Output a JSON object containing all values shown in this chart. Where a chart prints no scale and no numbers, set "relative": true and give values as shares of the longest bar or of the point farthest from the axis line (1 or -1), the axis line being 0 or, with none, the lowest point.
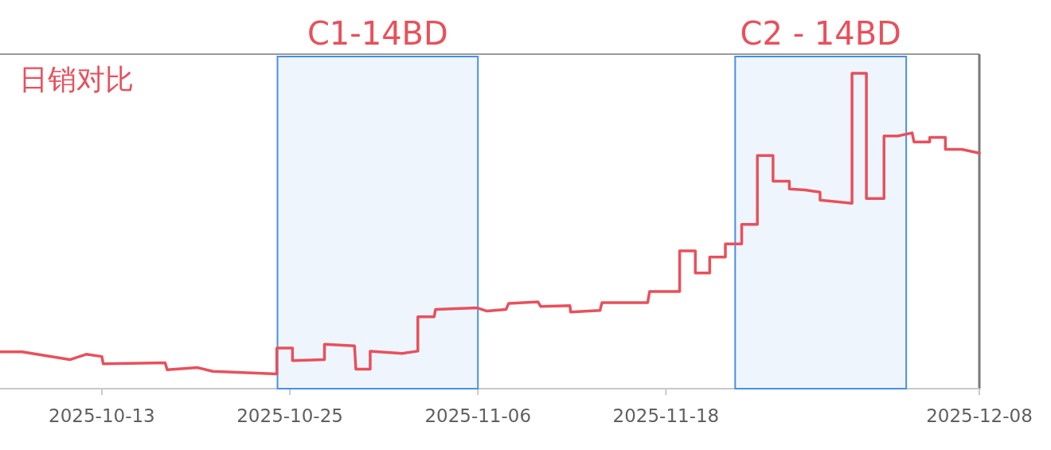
{
  "chart_data": {
    "type": "line",
    "title": "日销对比",
    "relative": true,
    "color": "#e8505b",
    "x": [
      "2025-10-06T12:00",
      "2025-10-07T22:00",
      "2025-10-10T23:00",
      "2025-10-12T00:00",
      "2025-10-13T00:00",
      "2025-10-13T02:00",
      "2025-10-17T01:00",
      "2025-10-17T04:00",
      "2025-10-19T02:00",
      "2025-10-20T02:00",
      "2025-10-24T04:00",
      "2025-10-24T04:00",
      "2025-10-25T04:00",
      "2025-10-25T04:00",
      "2025-10-27T05:00",
      "2025-10-27T05:00",
      "2025-10-29T03:00",
      "2025-10-29T05:00",
      "2025-10-30T03:00",
      "2025-10-30T03:00",
      "2025-11-01T04:00",
      "2025-11-02T04:00",
      "2025-11-02T04:00",
      "2025-11-03T05:00",
      "2025-11-03T07:00",
      "2025-11-05T23:00",
      "2025-11-06T14:00",
      "2025-11-07T19:00",
      "2025-11-07T23:00",
      "2025-11-09T20:00",
      "2025-11-10T00:00",
      "2025-11-11T21:00",
      "2025-11-11T22:00",
      "2025-11-13T19:00",
      "2025-11-13T22:00",
      "2025-11-16T20:00",
      "2025-11-16T23:00",
      "2025-11-18T21:00",
      "2025-11-18T21:00",
      "2025-11-19T21:00",
      "2025-11-19T21:00",
      "2025-11-20T19:00",
      "2025-11-20T19:00",
      "2025-11-21T19:00",
      "2025-11-21T19:00",
      "2025-11-22T20:00",
      "2025-11-22T20:00",
      "2025-11-23T20:00",
      "2025-11-23T20:00",
      "2025-11-24T20:00",
      "2025-11-24T20:00",
      "2025-11-25T21:00",
      "2025-11-25T21:00",
      "2025-11-26T21:00",
      "2025-11-27T20:00",
      "2025-11-27T20:00",
      "2025-11-29T21:00",
      "2025-11-29T21:00",
      "2025-11-30T19:00",
      "2025-11-30T19:00",
      "2025-12-01T22:00",
      "2025-12-01T22:00",
      "2025-12-02T19:00",
      "2025-12-03T17:00",
      "2025-12-03T20:00",
      "2025-12-04T20:00",
      "2025-12-04T20:00",
      "2025-12-05T20:00",
      "2025-12-05T20:00",
      "2025-12-06T21:00",
      "2025-12-08T00:00"
    ],
    "values": [
      0.117,
      0.117,
      0.092,
      0.109,
      0.102,
      0.079,
      0.082,
      0.06,
      0.067,
      0.055,
      0.047,
      0.129,
      0.129,
      0.089,
      0.092,
      0.141,
      0.136,
      0.062,
      0.062,
      0.119,
      0.112,
      0.119,
      0.228,
      0.228,
      0.251,
      0.256,
      0.246,
      0.251,
      0.27,
      0.275,
      0.261,
      0.263,
      0.243,
      0.248,
      0.273,
      0.273,
      0.308,
      0.308,
      0.437,
      0.437,
      0.367,
      0.367,
      0.417,
      0.417,
      0.459,
      0.459,
      0.521,
      0.521,
      0.739,
      0.739,
      0.658,
      0.658,
      0.633,
      0.63,
      0.623,
      0.598,
      0.588,
      1,
      1,
      0.603,
      0.603,
      0.801,
      0.801,
      0.811,
      0.782,
      0.782,
      0.797,
      0.797,
      0.759,
      0.759,
      0.747
    ],
    "xlim": [
      "2025-10-06T12:00",
      "2025-12-08"
    ],
    "xticks": [
      "2025-10-13",
      "2025-10-25",
      "2025-11-06",
      "2025-11-18",
      "2025-12-08"
    ],
    "bands": [
      {
        "axis": "x",
        "from": "2025-10-24T05:00",
        "to": "2025-11-06",
        "label": "C1-14BD",
        "color": "#4a90e2"
      },
      {
        "axis": "x",
        "from": "2025-11-22T10:00",
        "to": "2025-12-03T08:00",
        "label": "C2 - 14BD",
        "color": "#4a90e2"
      }
    ]
  }
}
